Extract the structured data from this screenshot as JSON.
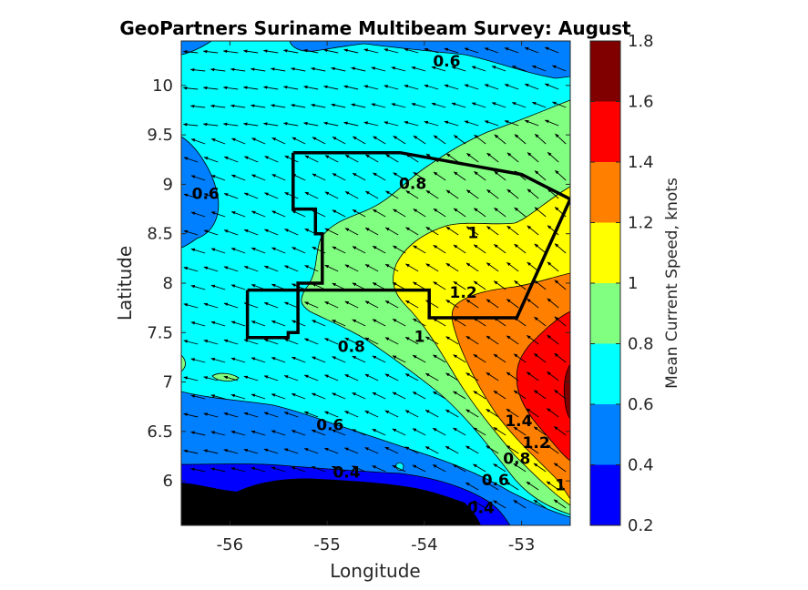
{
  "chart_data": {
    "type": "heatmap",
    "title": "GeoPartners Suriname Multibeam Survey: August",
    "xlabel": "Longitude",
    "ylabel": "Latitude",
    "colorbar_label": "Mean Current Speed, knots",
    "xlim": [
      -56.5,
      -52.5
    ],
    "ylim": [
      5.55,
      10.45
    ],
    "x_ticks": [
      -56,
      -55,
      -54,
      -53
    ],
    "x_tick_labels": [
      "-56",
      "-55",
      "-54",
      "-53"
    ],
    "y_ticks": [
      6,
      6.5,
      7,
      7.5,
      8,
      8.5,
      9,
      9.5,
      10
    ],
    "y_tick_labels": [
      "6",
      "6.5",
      "7",
      "7.5",
      "8",
      "8.5",
      "9",
      "9.5",
      "10"
    ],
    "colorbar": {
      "range": [
        0.2,
        1.8
      ],
      "levels": [
        0.2,
        0.4,
        0.6,
        0.8,
        1.0,
        1.2,
        1.4,
        1.6,
        1.8
      ],
      "tick_labels": [
        "0.2",
        "0.4",
        "0.6",
        "0.8",
        "1",
        "1.2",
        "1.4",
        "1.6",
        "1.8"
      ],
      "colors": [
        "#0000ff",
        "#0080ff",
        "#00ffff",
        "#80ff80",
        "#ffff00",
        "#ff8000",
        "#ff0000",
        "#800000"
      ]
    },
    "land_color": "#000000",
    "survey_boundary": [
      [
        -55.35,
        9.32
      ],
      [
        -54.25,
        9.32
      ],
      [
        -53.85,
        9.25
      ],
      [
        -53.0,
        9.1
      ],
      [
        -52.5,
        8.85
      ],
      [
        -53.05,
        7.65
      ],
      [
        -53.95,
        7.65
      ],
      [
        -53.95,
        7.93
      ],
      [
        -55.3,
        7.93
      ],
      [
        -55.3,
        8.0
      ],
      [
        -55.05,
        8.0
      ],
      [
        -55.05,
        8.5
      ],
      [
        -55.12,
        8.5
      ],
      [
        -55.12,
        8.75
      ],
      [
        -55.35,
        8.75
      ],
      [
        -55.35,
        9.32
      ]
    ],
    "survey_boundary_2": [
      [
        -55.82,
        7.93
      ],
      [
        -55.3,
        7.93
      ],
      [
        -55.3,
        7.5
      ],
      [
        -55.4,
        7.5
      ],
      [
        -55.4,
        7.45
      ],
      [
        -55.82,
        7.45
      ],
      [
        -55.82,
        7.93
      ]
    ],
    "contour_labels": [
      {
        "text": "0.6",
        "lon": -53.77,
        "lat": 10.24
      },
      {
        "text": "0.6",
        "lon": -56.25,
        "lat": 8.9
      },
      {
        "text": "0.8",
        "lon": -54.12,
        "lat": 9.0
      },
      {
        "text": "1",
        "lon": -53.5,
        "lat": 8.5
      },
      {
        "text": "1.2",
        "lon": -53.6,
        "lat": 7.9
      },
      {
        "text": "0.8",
        "lon": -54.75,
        "lat": 7.35
      },
      {
        "text": "1",
        "lon": -54.05,
        "lat": 7.45
      },
      {
        "text": "0.6",
        "lon": -54.97,
        "lat": 6.56
      },
      {
        "text": "0.4",
        "lon": -54.8,
        "lat": 6.08
      },
      {
        "text": "1.4",
        "lon": -53.03,
        "lat": 6.6
      },
      {
        "text": "1.2",
        "lon": -52.85,
        "lat": 6.38
      },
      {
        "text": "0.8",
        "lon": -53.05,
        "lat": 6.22
      },
      {
        "text": "1",
        "lon": -52.6,
        "lat": 5.95
      },
      {
        "text": "0.6",
        "lon": -53.27,
        "lat": 6.0
      },
      {
        "text": "0.4",
        "lon": -53.42,
        "lat": 5.72
      }
    ],
    "current_direction": "predominantly toward the northwest",
    "grid": false
  }
}
